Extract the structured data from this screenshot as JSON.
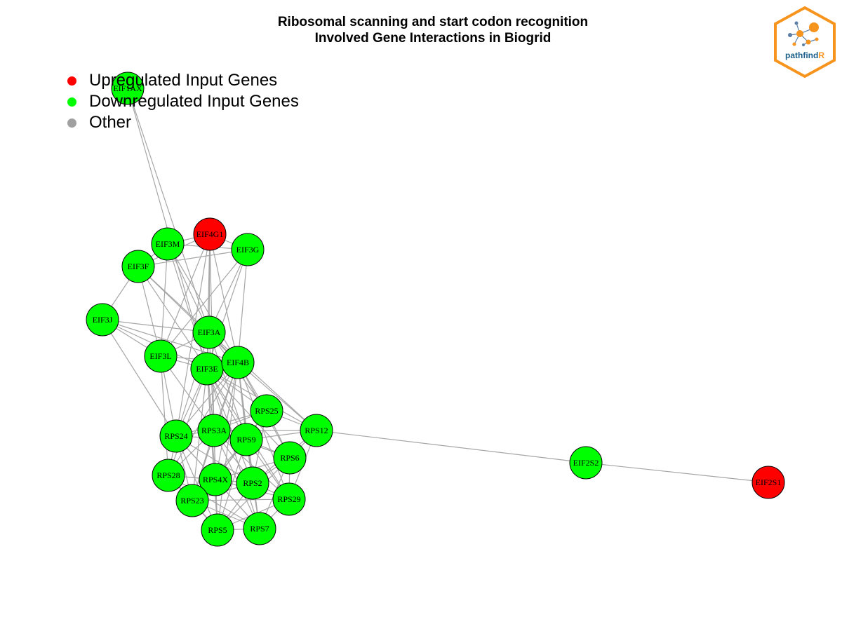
{
  "title": {
    "line1": "Ribosomal scanning and start codon recognition",
    "line2": "Involved Gene Interactions in Biogrid"
  },
  "legend": [
    {
      "label": "Upregulated Input Genes",
      "color": "#ff0000"
    },
    {
      "label": "Downregulated Input Genes",
      "color": "#00ff00"
    },
    {
      "label": "Other",
      "color": "#a0a0a0"
    }
  ],
  "logo": {
    "text_main": "pathfind",
    "text_accent": "R",
    "border_color": "#f7941d",
    "accent_color": "#f7941d",
    "text_color": "#1a5e8a"
  },
  "colors": {
    "up": "#ff0000",
    "down": "#00ff00",
    "other": "#a0a0a0",
    "edge": "#a6a6a6"
  },
  "nodes": [
    {
      "id": "EIF1AX",
      "status": "down"
    },
    {
      "id": "EIF4G1",
      "status": "up"
    },
    {
      "id": "EIF3M",
      "status": "down"
    },
    {
      "id": "EIF3G",
      "status": "down"
    },
    {
      "id": "EIF3F",
      "status": "down"
    },
    {
      "id": "EIF3J",
      "status": "down"
    },
    {
      "id": "EIF3A",
      "status": "down"
    },
    {
      "id": "EIF3L",
      "status": "down"
    },
    {
      "id": "EIF3E",
      "status": "down"
    },
    {
      "id": "EIF4B",
      "status": "down"
    },
    {
      "id": "RPS25",
      "status": "down"
    },
    {
      "id": "RPS12",
      "status": "down"
    },
    {
      "id": "RPS24",
      "status": "down"
    },
    {
      "id": "RPS3A",
      "status": "down"
    },
    {
      "id": "RPS9",
      "status": "down"
    },
    {
      "id": "RPS6",
      "status": "down"
    },
    {
      "id": "RPS28",
      "status": "down"
    },
    {
      "id": "RPS4X",
      "status": "down"
    },
    {
      "id": "RPS2",
      "status": "down"
    },
    {
      "id": "RPS23",
      "status": "down"
    },
    {
      "id": "RPS29",
      "status": "down"
    },
    {
      "id": "RPS5",
      "status": "down"
    },
    {
      "id": "RPS7",
      "status": "down"
    },
    {
      "id": "EIF2S2",
      "status": "down"
    },
    {
      "id": "EIF2S1",
      "status": "up"
    }
  ],
  "edges": [
    [
      "EIF1AX",
      "EIF3A"
    ],
    [
      "EIF1AX",
      "EIF3E"
    ],
    [
      "EIF4G1",
      "EIF3M"
    ],
    [
      "EIF4G1",
      "EIF3G"
    ],
    [
      "EIF4G1",
      "EIF3A"
    ],
    [
      "EIF4G1",
      "EIF3E"
    ],
    [
      "EIF4G1",
      "EIF3L"
    ],
    [
      "EIF4G1",
      "EIF4B"
    ],
    [
      "EIF4G1",
      "EIF3F"
    ],
    [
      "EIF4G1",
      "RPS3A"
    ],
    [
      "EIF4G1",
      "RPS24"
    ],
    [
      "EIF3M",
      "EIF3G"
    ],
    [
      "EIF3M",
      "EIF3A"
    ],
    [
      "EIF3M",
      "EIF3E"
    ],
    [
      "EIF3M",
      "EIF3L"
    ],
    [
      "EIF3M",
      "EIF4B"
    ],
    [
      "EIF3M",
      "EIF3F"
    ],
    [
      "EIF3G",
      "EIF3A"
    ],
    [
      "EIF3G",
      "EIF3E"
    ],
    [
      "EIF3G",
      "EIF3L"
    ],
    [
      "EIF3G",
      "EIF3F"
    ],
    [
      "EIF3G",
      "EIF4B"
    ],
    [
      "EIF3F",
      "EIF3J"
    ],
    [
      "EIF3F",
      "EIF3A"
    ],
    [
      "EIF3F",
      "EIF3E"
    ],
    [
      "EIF3F",
      "EIF3L"
    ],
    [
      "EIF3F",
      "EIF4B"
    ],
    [
      "EIF3J",
      "EIF3A"
    ],
    [
      "EIF3J",
      "EIF3E"
    ],
    [
      "EIF3J",
      "EIF3L"
    ],
    [
      "EIF3J",
      "EIF4B"
    ],
    [
      "EIF3J",
      "RPS24"
    ],
    [
      "EIF3A",
      "EIF3E"
    ],
    [
      "EIF3A",
      "EIF3L"
    ],
    [
      "EIF3A",
      "EIF4B"
    ],
    [
      "EIF3A",
      "RPS3A"
    ],
    [
      "EIF3A",
      "RPS9"
    ],
    [
      "EIF3A",
      "RPS24"
    ],
    [
      "EIF3A",
      "RPS25"
    ],
    [
      "EIF3A",
      "RPS12"
    ],
    [
      "EIF3L",
      "EIF3E"
    ],
    [
      "EIF3L",
      "EIF4B"
    ],
    [
      "EIF3L",
      "RPS24"
    ],
    [
      "EIF3L",
      "RPS3A"
    ],
    [
      "EIF3L",
      "RPS28"
    ],
    [
      "EIF3E",
      "EIF4B"
    ],
    [
      "EIF3E",
      "RPS24"
    ],
    [
      "EIF3E",
      "RPS3A"
    ],
    [
      "EIF3E",
      "RPS9"
    ],
    [
      "EIF3E",
      "RPS6"
    ],
    [
      "EIF3E",
      "RPS2"
    ],
    [
      "EIF3E",
      "RPS4X"
    ],
    [
      "EIF3E",
      "RPS28"
    ],
    [
      "EIF3E",
      "RPS23"
    ],
    [
      "EIF3E",
      "RPS5"
    ],
    [
      "EIF3E",
      "RPS7"
    ],
    [
      "EIF3E",
      "RPS29"
    ],
    [
      "EIF3E",
      "RPS25"
    ],
    [
      "EIF3E",
      "RPS12"
    ],
    [
      "EIF4B",
      "RPS24"
    ],
    [
      "EIF4B",
      "RPS3A"
    ],
    [
      "EIF4B",
      "RPS9"
    ],
    [
      "EIF4B",
      "RPS6"
    ],
    [
      "EIF4B",
      "RPS12"
    ],
    [
      "EIF4B",
      "RPS25"
    ],
    [
      "EIF4B",
      "RPS2"
    ],
    [
      "EIF4B",
      "RPS4X"
    ],
    [
      "EIF4B",
      "RPS28"
    ],
    [
      "EIF4B",
      "RPS23"
    ],
    [
      "EIF4B",
      "RPS29"
    ],
    [
      "EIF4B",
      "RPS5"
    ],
    [
      "EIF4B",
      "RPS7"
    ],
    [
      "RPS25",
      "RPS12"
    ],
    [
      "RPS25",
      "RPS3A"
    ],
    [
      "RPS25",
      "RPS9"
    ],
    [
      "RPS25",
      "RPS6"
    ],
    [
      "RPS25",
      "RPS24"
    ],
    [
      "RPS25",
      "RPS2"
    ],
    [
      "RPS25",
      "RPS4X"
    ],
    [
      "RPS12",
      "RPS9"
    ],
    [
      "RPS12",
      "RPS6"
    ],
    [
      "RPS12",
      "RPS3A"
    ],
    [
      "RPS12",
      "RPS29"
    ],
    [
      "RPS12",
      "RPS2"
    ],
    [
      "RPS12",
      "EIF2S2"
    ],
    [
      "RPS24",
      "RPS3A"
    ],
    [
      "RPS24",
      "RPS28"
    ],
    [
      "RPS24",
      "RPS4X"
    ],
    [
      "RPS24",
      "RPS23"
    ],
    [
      "RPS24",
      "RPS5"
    ],
    [
      "RPS24",
      "RPS2"
    ],
    [
      "RPS24",
      "RPS9"
    ],
    [
      "RPS24",
      "RPS7"
    ],
    [
      "RPS3A",
      "RPS9"
    ],
    [
      "RPS3A",
      "RPS4X"
    ],
    [
      "RPS3A",
      "RPS2"
    ],
    [
      "RPS3A",
      "RPS28"
    ],
    [
      "RPS3A",
      "RPS23"
    ],
    [
      "RPS3A",
      "RPS6"
    ],
    [
      "RPS3A",
      "RPS5"
    ],
    [
      "RPS3A",
      "RPS7"
    ],
    [
      "RPS3A",
      "RPS29"
    ],
    [
      "RPS9",
      "RPS6"
    ],
    [
      "RPS9",
      "RPS2"
    ],
    [
      "RPS9",
      "RPS4X"
    ],
    [
      "RPS9",
      "RPS29"
    ],
    [
      "RPS9",
      "RPS7"
    ],
    [
      "RPS9",
      "RPS5"
    ],
    [
      "RPS9",
      "RPS23"
    ],
    [
      "RPS6",
      "RPS2"
    ],
    [
      "RPS6",
      "RPS29"
    ],
    [
      "RPS6",
      "RPS4X"
    ],
    [
      "RPS6",
      "RPS7"
    ],
    [
      "RPS6",
      "RPS5"
    ],
    [
      "RPS28",
      "RPS4X"
    ],
    [
      "RPS28",
      "RPS23"
    ],
    [
      "RPS28",
      "RPS5"
    ],
    [
      "RPS28",
      "RPS2"
    ],
    [
      "RPS28",
      "RPS7"
    ],
    [
      "RPS4X",
      "RPS2"
    ],
    [
      "RPS4X",
      "RPS23"
    ],
    [
      "RPS4X",
      "RPS5"
    ],
    [
      "RPS4X",
      "RPS7"
    ],
    [
      "RPS4X",
      "RPS29"
    ],
    [
      "RPS2",
      "RPS29"
    ],
    [
      "RPS2",
      "RPS7"
    ],
    [
      "RPS2",
      "RPS5"
    ],
    [
      "RPS2",
      "RPS23"
    ],
    [
      "RPS23",
      "RPS5"
    ],
    [
      "RPS23",
      "RPS7"
    ],
    [
      "RPS23",
      "RPS29"
    ],
    [
      "RPS29",
      "RPS7"
    ],
    [
      "RPS29",
      "RPS5"
    ],
    [
      "RPS5",
      "RPS7"
    ],
    [
      "EIF2S2",
      "EIF2S1"
    ]
  ]
}
